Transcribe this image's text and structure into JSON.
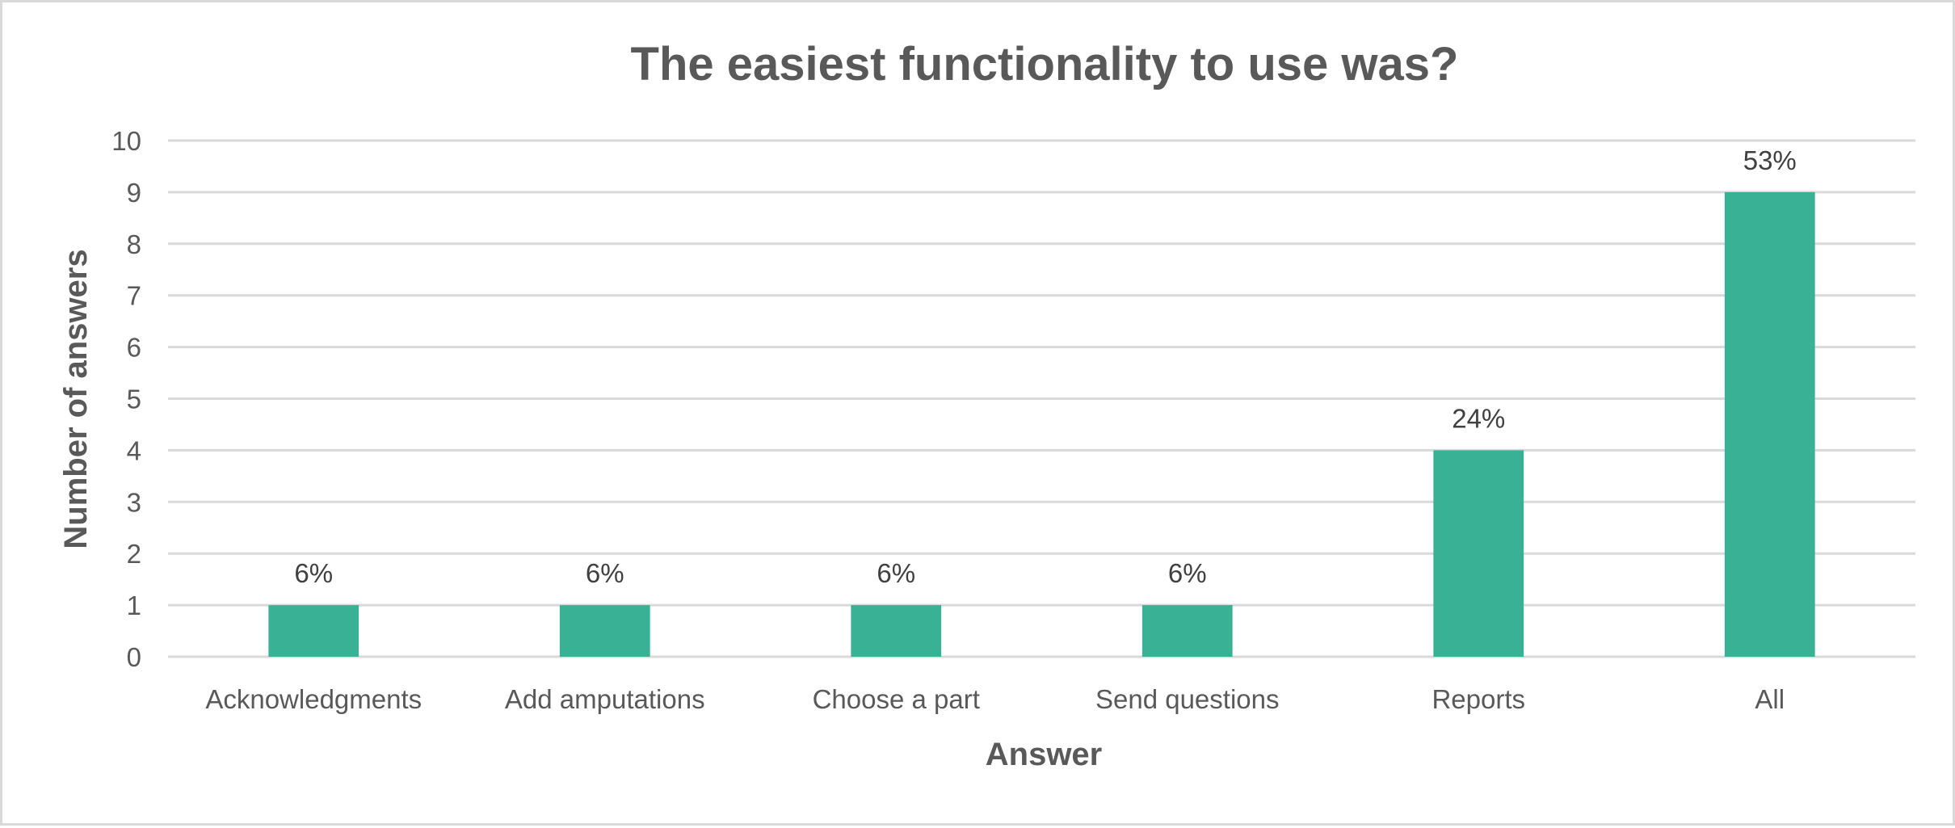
{
  "chart_data": {
    "type": "bar",
    "title": "The easiest functionality to use was?",
    "xlabel": "Answer",
    "ylabel": "Number of answers",
    "categories": [
      "Acknowledgments",
      "Add amputations",
      "Choose a part",
      "Send questions",
      "Reports",
      "All"
    ],
    "values": [
      1,
      1,
      1,
      1,
      4,
      9
    ],
    "data_labels": [
      "6%",
      "6%",
      "6%",
      "6%",
      "24%",
      "53%"
    ],
    "ylim": [
      0,
      10
    ],
    "yticks": [
      "0",
      "1",
      "2",
      "3",
      "4",
      "5",
      "6",
      "7",
      "8",
      "9",
      "10"
    ],
    "grid": true,
    "legend": "none",
    "bar_color": "#38b194",
    "grid_color": "#d9d9d9"
  }
}
